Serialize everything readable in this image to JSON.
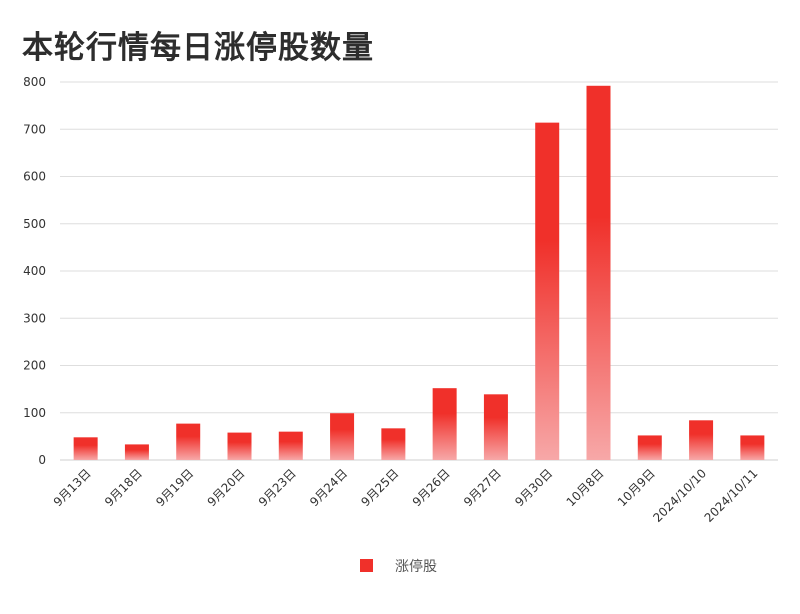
{
  "chart_data": {
    "type": "bar",
    "title": "本轮行情每日涨停股数量",
    "categories": [
      "9月13日",
      "9月18日",
      "9月19日",
      "9月20日",
      "9月23日",
      "9月24日",
      "9月25日",
      "9月26日",
      "9月27日",
      "9月30日",
      "10月8日",
      "10月9日",
      "2024/10/10",
      "2024/10/11"
    ],
    "series": [
      {
        "name": "涨停股",
        "values": [
          48,
          33,
          77,
          58,
          60,
          99,
          67,
          152,
          139,
          714,
          792,
          52,
          84,
          52
        ],
        "color": "#f0302a"
      }
    ],
    "xlabel": "",
    "ylabel": "",
    "ylim": [
      0,
      800
    ],
    "yticks": [
      0,
      100,
      200,
      300,
      400,
      500,
      600,
      700,
      800
    ],
    "grid": true,
    "legend": "bottom-center"
  }
}
